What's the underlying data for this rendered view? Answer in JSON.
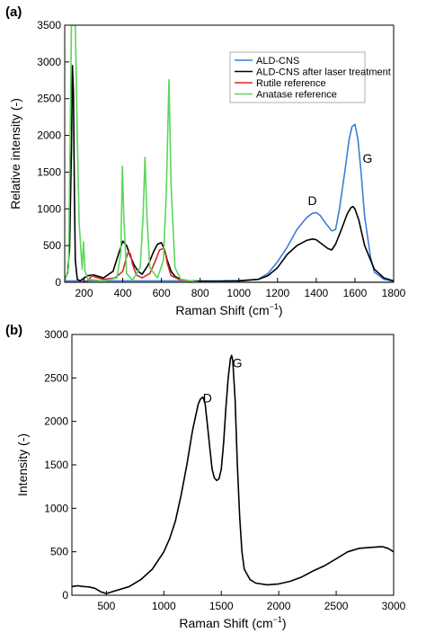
{
  "chart_data": [
    {
      "type": "line",
      "panel_label": "(a)",
      "xlabel": "Raman Shift (cm",
      "xlabel_sup": "−1",
      "xlabel_end": ")",
      "ylabel": "Relative intensity (-)",
      "xlim": [
        100,
        1800
      ],
      "ylim": [
        0,
        3500
      ],
      "xticks": [
        200,
        400,
        600,
        800,
        1000,
        1200,
        1400,
        1600,
        1800
      ],
      "yticks": [
        0,
        500,
        1000,
        1500,
        2000,
        2500,
        3000,
        3500
      ],
      "legend_position": "top-right",
      "annotations": [
        {
          "text": "D",
          "x": 1380,
          "y": 1050
        },
        {
          "text": "G",
          "x": 1665,
          "y": 1630
        }
      ],
      "series": [
        {
          "name": "ALD-CNS",
          "color": "#3a7fd5",
          "x": [
            100,
            300,
            500,
            700,
            900,
            1000,
            1100,
            1150,
            1200,
            1250,
            1300,
            1350,
            1380,
            1400,
            1420,
            1450,
            1480,
            1500,
            1520,
            1550,
            1570,
            1585,
            1600,
            1615,
            1630,
            1650,
            1680,
            1700,
            1750,
            1800
          ],
          "y": [
            20,
            20,
            20,
            20,
            20,
            25,
            40,
            120,
            280,
            480,
            720,
            880,
            940,
            950,
            910,
            800,
            700,
            720,
            1000,
            1550,
            1950,
            2120,
            2150,
            1950,
            1550,
            900,
            350,
            140,
            40,
            15
          ]
        },
        {
          "name": "ALD-CNS after laser treatment",
          "color": "#000000",
          "x": [
            100,
            115,
            125,
            135,
            140,
            145,
            150,
            155,
            165,
            180,
            200,
            220,
            250,
            300,
            350,
            380,
            400,
            420,
            440,
            460,
            480,
            500,
            530,
            560,
            580,
            600,
            615,
            630,
            650,
            670,
            700,
            750,
            800,
            900,
            1000,
            1100,
            1150,
            1200,
            1250,
            1300,
            1350,
            1380,
            1400,
            1430,
            1460,
            1480,
            1500,
            1530,
            1560,
            1580,
            1590,
            1600,
            1620,
            1650,
            1700,
            1750,
            1800
          ],
          "y": [
            40,
            130,
            450,
            1800,
            2950,
            2600,
            1200,
            300,
            40,
            20,
            60,
            90,
            100,
            60,
            150,
            400,
            560,
            500,
            350,
            230,
            150,
            110,
            230,
            420,
            520,
            540,
            450,
            300,
            150,
            80,
            40,
            20,
            15,
            15,
            20,
            40,
            90,
            200,
            380,
            500,
            570,
            590,
            580,
            520,
            460,
            440,
            520,
            720,
            930,
            1020,
            1030,
            1000,
            850,
            500,
            180,
            60,
            20
          ]
        },
        {
          "name": "Rutile reference",
          "color": "#d62728",
          "x": [
            100,
            200,
            220,
            240,
            260,
            300,
            360,
            400,
            420,
            430,
            440,
            450,
            470,
            500,
            540,
            570,
            590,
            610,
            620,
            630,
            650,
            700,
            800,
            1800
          ],
          "y": [
            0,
            0,
            20,
            90,
            70,
            40,
            60,
            150,
            350,
            420,
            380,
            250,
            100,
            60,
            120,
            300,
            440,
            460,
            410,
            260,
            90,
            30,
            0,
            0
          ]
        },
        {
          "name": "Anatase reference",
          "color": "#5bd65b",
          "x": [
            100,
            120,
            135,
            145,
            155,
            165,
            175,
            190,
            197,
            205,
            220,
            300,
            370,
            390,
            398,
            405,
            420,
            450,
            490,
            505,
            515,
            525,
            540,
            580,
            610,
            625,
            639,
            650,
            670,
            700,
            800,
            1800
          ],
          "y": [
            10,
            200,
            3500,
            3500,
            3500,
            2000,
            800,
            180,
            550,
            150,
            40,
            20,
            60,
            400,
            1580,
            900,
            120,
            30,
            200,
            900,
            1700,
            900,
            200,
            60,
            300,
            1200,
            2760,
            1300,
            200,
            40,
            0,
            0
          ]
        }
      ]
    },
    {
      "type": "line",
      "panel_label": "(b)",
      "xlabel": "Raman Shift (cm",
      "xlabel_sup": "−1",
      "xlabel_end": ")",
      "ylabel": "Intensity (-)",
      "xlim": [
        200,
        3000
      ],
      "ylim": [
        0,
        3000
      ],
      "xticks": [
        500,
        1000,
        1500,
        2000,
        2500,
        3000
      ],
      "yticks": [
        0,
        500,
        1000,
        1500,
        2000,
        2500,
        3000
      ],
      "annotations": [
        {
          "text": "D",
          "x": 1380,
          "y": 2220
        },
        {
          "text": "G",
          "x": 1640,
          "y": 2620
        }
      ],
      "series": [
        {
          "name": "",
          "color": "#000000",
          "x": [
            200,
            250,
            300,
            350,
            400,
            450,
            500,
            550,
            600,
            650,
            700,
            800,
            900,
            1000,
            1050,
            1100,
            1150,
            1200,
            1250,
            1300,
            1320,
            1340,
            1360,
            1380,
            1400,
            1420,
            1440,
            1460,
            1480,
            1500,
            1520,
            1540,
            1560,
            1580,
            1590,
            1600,
            1620,
            1640,
            1660,
            1680,
            1700,
            1750,
            1800,
            1900,
            2000,
            2100,
            2200,
            2300,
            2400,
            2500,
            2600,
            2700,
            2800,
            2900,
            2950,
            3000
          ],
          "y": [
            100,
            110,
            100,
            95,
            80,
            40,
            20,
            40,
            60,
            80,
            100,
            180,
            300,
            500,
            650,
            850,
            1150,
            1500,
            1900,
            2200,
            2260,
            2280,
            2200,
            1950,
            1700,
            1450,
            1350,
            1320,
            1340,
            1450,
            1750,
            2150,
            2500,
            2720,
            2760,
            2700,
            2250,
            1500,
            900,
            500,
            300,
            180,
            140,
            120,
            130,
            160,
            210,
            280,
            340,
            420,
            500,
            540,
            550,
            560,
            540,
            500
          ]
        }
      ]
    }
  ]
}
